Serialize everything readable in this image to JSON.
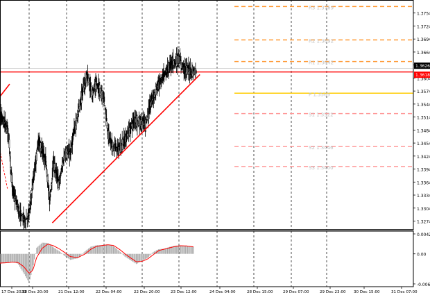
{
  "chart_data": {
    "type": "candlestick",
    "price_axis": {
      "ylim": [
        1.3254,
        1.3784
      ],
      "tick_labels": [
        "1.3754",
        "1.3724",
        "1.3694",
        "1.3664",
        "1.3634",
        "1.3604",
        "1.3574",
        "1.3544",
        "1.3514",
        "1.3484",
        "1.3454",
        "1.3424",
        "1.3394",
        "1.3364",
        "1.3334",
        "1.3304",
        "1.3274"
      ],
      "tick_values": [
        1.3754,
        1.3724,
        1.3694,
        1.3664,
        1.3634,
        1.3604,
        1.3574,
        1.3544,
        1.3514,
        1.3484,
        1.3454,
        1.3424,
        1.3394,
        1.3364,
        1.3334,
        1.3304,
        1.3274
      ]
    },
    "price_tags": [
      {
        "label": "1.3626",
        "value": 1.3626,
        "color": "#000000"
      },
      {
        "label": "1.3618",
        "value": 1.3618,
        "color": "#ff0000"
      }
    ],
    "time_axis": {
      "labels": [
        "17 Dec 2020",
        "18 Dec 20:00",
        "21 Dec 12:00",
        "22 Dec 04:00",
        "22 Dec 20:00",
        "23 Dec 12:00",
        "24 Dec 04:00",
        "28 Dec 15:00",
        "29 Dec 07:00",
        "29 Dec 23:00",
        "30 Dec 15:00",
        "31 Dec 07:00"
      ]
    },
    "horizontal_levels": [
      {
        "label": "R3 1.3769",
        "value": 1.3769,
        "color": "#ff9933",
        "dash": true
      },
      {
        "label": "R2 1.3692",
        "value": 1.3692,
        "color": "#ff9933",
        "dash": true
      },
      {
        "label": "R1 1.3642",
        "value": 1.3642,
        "color": "#ff9933",
        "dash": true
      },
      {
        "label": "P 1.3569",
        "value": 1.3569,
        "color": "#ffcc00",
        "dash": false
      },
      {
        "label": "S1 1.3522",
        "value": 1.3522,
        "color": "#ff9999",
        "dash": true
      },
      {
        "label": "S2 1.3446",
        "value": 1.3446,
        "color": "#ff9999",
        "dash": true
      },
      {
        "label": "S3 1.3400",
        "value": 1.34,
        "color": "#ff9999",
        "dash": true
      },
      {
        "label": "",
        "value": 1.3618,
        "color": "#ff0000",
        "dash": false
      }
    ],
    "trend_lines": [
      {
        "from": [
          0.0,
          1.3534
        ],
        "to": [
          0.42,
          1.3349
        ],
        "color": "#ff0000",
        "dash": true
      },
      {
        "from": [
          0.0,
          1.3537
        ],
        "to": [
          0.48,
          1.359
        ],
        "color": "#ff0000",
        "dash": false
      },
      {
        "from": [
          1.62,
          1.327
        ],
        "to": [
          5.55,
          1.3612
        ],
        "color": "#ff0000",
        "dash": false
      }
    ],
    "path_x": [
      0.0,
      0.2,
      0.35,
      0.45,
      0.5,
      0.55,
      0.75,
      0.9,
      1.0,
      1.1,
      1.25,
      1.45,
      1.55,
      1.65,
      1.8,
      1.95,
      2.1,
      2.2,
      2.35,
      2.45,
      2.55,
      2.6,
      2.7,
      2.8,
      3.0,
      3.1,
      3.2,
      3.35,
      3.4,
      3.6,
      3.8,
      3.95,
      4.1,
      4.25,
      4.45,
      4.6,
      4.8,
      5.0,
      5.15,
      5.3,
      5.38,
      5.45
    ],
    "path_y": [
      1.3555,
      1.352,
      1.35,
      1.348,
      1.341,
      1.335,
      1.329,
      1.3275,
      1.329,
      1.336,
      1.346,
      1.341,
      1.332,
      1.341,
      1.336,
      1.343,
      1.343,
      1.348,
      1.354,
      1.358,
      1.361,
      1.359,
      1.357,
      1.359,
      1.356,
      1.348,
      1.345,
      1.344,
      1.344,
      1.347,
      1.351,
      1.35,
      1.35,
      1.355,
      1.359,
      1.361,
      1.364,
      1.3646,
      1.3625,
      1.362,
      1.362,
      1.3618
    ],
    "macd_axis": {
      "tick_labels": [
        "0.00429",
        "0.00",
        "-0.00647"
      ],
      "tick_values": [
        0.00429,
        0.0,
        -0.00647
      ]
    },
    "macd_x": [
      0.0,
      0.2,
      0.4,
      0.55,
      0.7,
      0.85,
      1.0,
      1.1,
      1.2,
      1.35,
      1.5,
      1.65,
      1.8,
      1.95,
      2.1,
      2.3,
      2.5,
      2.65,
      2.8,
      2.95,
      3.1,
      3.25,
      3.4,
      3.55,
      3.7,
      3.85,
      4.0,
      4.15,
      4.3,
      4.45,
      4.6,
      4.75,
      4.9,
      5.05,
      5.2,
      5.38
    ],
    "macd_values": [
      -0.00225,
      -0.00215,
      -0.0019,
      -0.0017,
      -0.0021,
      -0.0041,
      -0.0062,
      -0.003,
      0.0013,
      0.0024,
      0.00235,
      0.0014,
      0.0006,
      -0.00045,
      -0.0013,
      -0.00095,
      0.0006,
      0.00155,
      0.00185,
      0.0019,
      0.00205,
      0.00165,
      0.0006,
      -0.0006,
      -0.0014,
      -0.0022,
      -0.0014,
      -0.0009,
      0.0004,
      0.001,
      0.0011,
      0.0015,
      0.00175,
      0.0018,
      0.00165,
      0.0015
    ],
    "signal_values": [
      -0.0019,
      -0.002,
      -0.0019,
      -0.0018,
      -0.00185,
      -0.0027,
      -0.0042,
      -0.0035,
      -0.0008,
      0.0012,
      0.0021,
      0.00175,
      0.0011,
      0.0003,
      -0.0006,
      -0.0008,
      0.0,
      0.001,
      0.0016,
      0.0018,
      0.00195,
      0.0018,
      0.001,
      0.0,
      -0.0009,
      -0.0017,
      -0.0016,
      -0.0011,
      -0.0002,
      0.0007,
      0.001,
      0.0013,
      0.0016,
      0.00175,
      0.0017,
      0.0015
    ],
    "colors": {
      "candle": "#000000",
      "frame": "#000000",
      "grid": "#000000",
      "histogram": "#a8a8a8",
      "signal": "#ff0000",
      "tag_text": "#ffffff"
    }
  }
}
